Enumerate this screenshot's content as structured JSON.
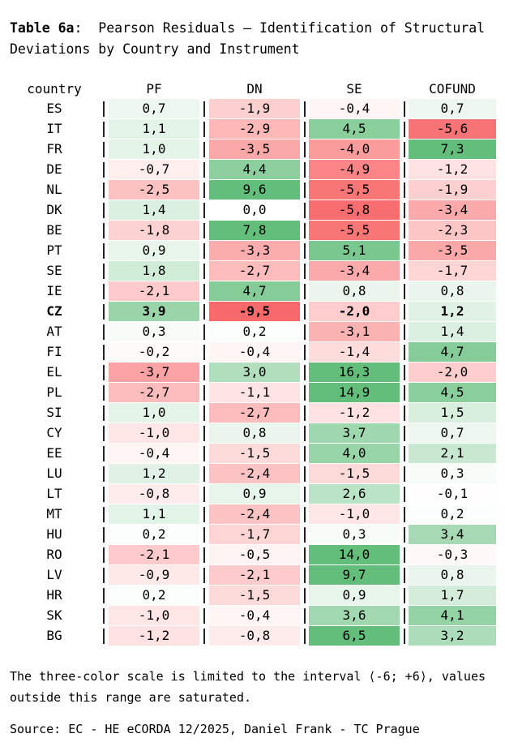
{
  "title": {
    "label": "Table 6a",
    "text": ":  Pearson Residuals – Identification of Structural Deviations by Country and Instrument"
  },
  "table": {
    "country_header": "country",
    "columns": [
      "PF",
      "DN",
      "SE",
      "COFUND"
    ],
    "rows": [
      {
        "country": "ES",
        "values": [
          "0,7",
          "-1,9",
          "-0,4",
          "0,7"
        ],
        "bold": false
      },
      {
        "country": "IT",
        "values": [
          "1,1",
          "-2,9",
          "4,5",
          "-5,6"
        ],
        "bold": false
      },
      {
        "country": "FR",
        "values": [
          "1,0",
          "-3,5",
          "-4,0",
          "7,3"
        ],
        "bold": false
      },
      {
        "country": "DE",
        "values": [
          "-0,7",
          "4,4",
          "-4,9",
          "-1,2"
        ],
        "bold": false
      },
      {
        "country": "NL",
        "values": [
          "-2,5",
          "9,6",
          "-5,5",
          "-1,9"
        ],
        "bold": false
      },
      {
        "country": "DK",
        "values": [
          "1,4",
          "0,0",
          "-5,8",
          "-3,4"
        ],
        "bold": false
      },
      {
        "country": "BE",
        "values": [
          "-1,8",
          "7,8",
          "-5,5",
          "-2,3"
        ],
        "bold": false
      },
      {
        "country": "PT",
        "values": [
          "0,9",
          "-3,3",
          "5,1",
          "-3,5"
        ],
        "bold": false
      },
      {
        "country": "SE",
        "values": [
          "1,8",
          "-2,7",
          "-3,4",
          "-1,7"
        ],
        "bold": false
      },
      {
        "country": "IE",
        "values": [
          "-2,1",
          "4,7",
          "0,8",
          "0,8"
        ],
        "bold": false
      },
      {
        "country": "CZ",
        "values": [
          "3,9",
          "-9,5",
          "-2,0",
          "1,2"
        ],
        "bold": true
      },
      {
        "country": "AT",
        "values": [
          "0,3",
          "0,2",
          "-3,1",
          "1,4"
        ],
        "bold": false
      },
      {
        "country": "FI",
        "values": [
          "-0,2",
          "-0,4",
          "-1,4",
          "4,7"
        ],
        "bold": false
      },
      {
        "country": "EL",
        "values": [
          "-3,7",
          "3,0",
          "16,3",
          "-2,0"
        ],
        "bold": false
      },
      {
        "country": "PL",
        "values": [
          "-2,7",
          "-1,1",
          "14,9",
          "4,5"
        ],
        "bold": false
      },
      {
        "country": "SI",
        "values": [
          "1,0",
          "-2,7",
          "-1,2",
          "1,5"
        ],
        "bold": false
      },
      {
        "country": "CY",
        "values": [
          "-1,0",
          "0,8",
          "3,7",
          "0,7"
        ],
        "bold": false
      },
      {
        "country": "EE",
        "values": [
          "-0,4",
          "-1,5",
          "4,0",
          "2,1"
        ],
        "bold": false
      },
      {
        "country": "LU",
        "values": [
          "1,2",
          "-2,4",
          "-1,5",
          "0,3"
        ],
        "bold": false
      },
      {
        "country": "LT",
        "values": [
          "-0,8",
          "0,9",
          "2,6",
          "-0,1"
        ],
        "bold": false
      },
      {
        "country": "MT",
        "values": [
          "1,1",
          "-2,4",
          "-1,0",
          "0,2"
        ],
        "bold": false
      },
      {
        "country": "HU",
        "values": [
          "0,2",
          "-1,7",
          "0,3",
          "3,4"
        ],
        "bold": false
      },
      {
        "country": "RO",
        "values": [
          "-2,1",
          "-0,5",
          "14,0",
          "-0,3"
        ],
        "bold": false
      },
      {
        "country": "LV",
        "values": [
          "-0,9",
          "-2,1",
          "9,7",
          "0,8"
        ],
        "bold": false
      },
      {
        "country": "HR",
        "values": [
          "0,2",
          "-1,5",
          "0,9",
          "1,7"
        ],
        "bold": false
      },
      {
        "country": "SK",
        "values": [
          "-1,0",
          "-0,4",
          "3,6",
          "4,1"
        ],
        "bold": false
      },
      {
        "country": "BG",
        "values": [
          "-1,2",
          "-0,8",
          "6,5",
          "3,2"
        ],
        "bold": false
      }
    ]
  },
  "scale": {
    "negative_color": "#F8696B",
    "zero_color": "#FFFFFF",
    "positive_color": "#63BE7B",
    "saturation_limit": 6
  },
  "footnote": "The three-color scale is limited to the interval ⟨-6; +6⟩, values outside this range are saturated.",
  "source": "Source: EC - HE eCORDA 12/2025, Daniel Frank - TC Prague",
  "chart_data": {
    "type": "heatmap",
    "title": "Table 6a: Pearson Residuals – Identification of Structural Deviations by Country and Instrument",
    "rows": [
      "ES",
      "IT",
      "FR",
      "DE",
      "NL",
      "DK",
      "BE",
      "PT",
      "SE",
      "IE",
      "CZ",
      "AT",
      "FI",
      "EL",
      "PL",
      "SI",
      "CY",
      "EE",
      "LU",
      "LT",
      "MT",
      "HU",
      "RO",
      "LV",
      "HR",
      "SK",
      "BG"
    ],
    "columns": [
      "PF",
      "DN",
      "SE",
      "COFUND"
    ],
    "values": [
      [
        0.7,
        -1.9,
        -0.4,
        0.7
      ],
      [
        1.1,
        -2.9,
        4.5,
        -5.6
      ],
      [
        1.0,
        -3.5,
        -4.0,
        7.3
      ],
      [
        -0.7,
        4.4,
        -4.9,
        -1.2
      ],
      [
        -2.5,
        9.6,
        -5.5,
        -1.9
      ],
      [
        1.4,
        0.0,
        -5.8,
        -3.4
      ],
      [
        -1.8,
        7.8,
        -5.5,
        -2.3
      ],
      [
        0.9,
        -3.3,
        5.1,
        -3.5
      ],
      [
        1.8,
        -2.7,
        -3.4,
        -1.7
      ],
      [
        -2.1,
        4.7,
        0.8,
        0.8
      ],
      [
        3.9,
        -9.5,
        -2.0,
        1.2
      ],
      [
        0.3,
        0.2,
        -3.1,
        1.4
      ],
      [
        -0.2,
        -0.4,
        -1.4,
        4.7
      ],
      [
        -3.7,
        3.0,
        16.3,
        -2.0
      ],
      [
        -2.7,
        -1.1,
        14.9,
        4.5
      ],
      [
        1.0,
        -2.7,
        -1.2,
        1.5
      ],
      [
        -1.0,
        0.8,
        3.7,
        0.7
      ],
      [
        -0.4,
        -1.5,
        4.0,
        2.1
      ],
      [
        1.2,
        -2.4,
        -1.5,
        0.3
      ],
      [
        -0.8,
        0.9,
        2.6,
        -0.1
      ],
      [
        1.1,
        -2.4,
        -1.0,
        0.2
      ],
      [
        0.2,
        -1.7,
        0.3,
        3.4
      ],
      [
        -2.1,
        -0.5,
        14.0,
        -0.3
      ],
      [
        -0.9,
        -2.1,
        9.7,
        0.8
      ],
      [
        0.2,
        -1.5,
        0.9,
        1.7
      ],
      [
        -1.0,
        -0.4,
        3.6,
        4.1
      ],
      [
        -1.2,
        -0.8,
        6.5,
        3.2
      ]
    ],
    "color_scale": {
      "min": -6,
      "mid": 0,
      "max": 6,
      "min_color": "#F8696B",
      "mid_color": "#FFFFFF",
      "max_color": "#63BE7B",
      "note": "values outside range are saturated"
    },
    "highlighted_row": "CZ",
    "decimal_separator": ","
  }
}
